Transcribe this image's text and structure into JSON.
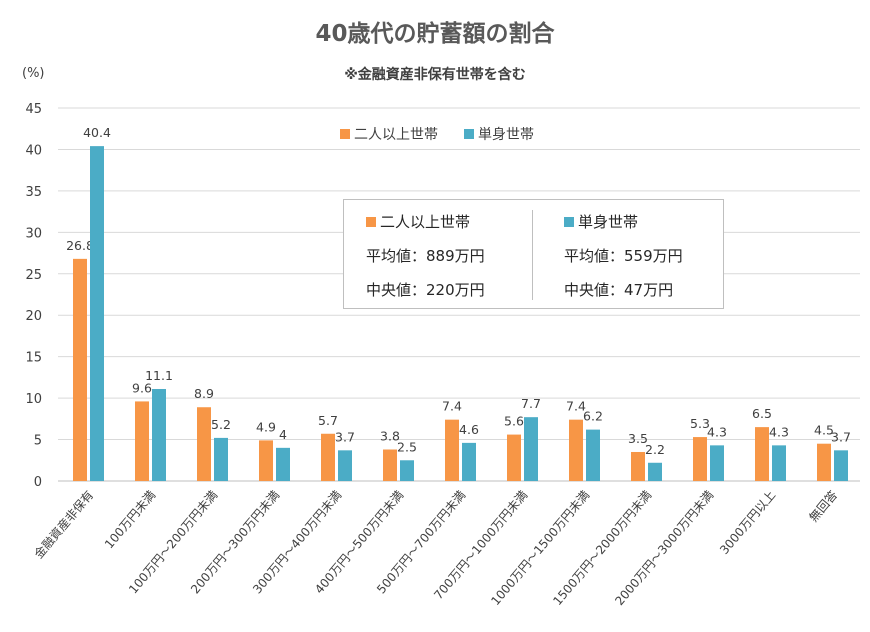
{
  "chart_data": {
    "type": "bar",
    "title": "40歳代の貯蓄額の割合",
    "subtitle": "※金融資産非保有世帯を含む",
    "ylabel": "(%)",
    "ylim": [
      0,
      45
    ],
    "yticks": [
      0,
      5,
      10,
      15,
      20,
      25,
      30,
      35,
      40,
      45
    ],
    "grid": true,
    "legend_position": "top",
    "categories": [
      "金融資産非保有",
      "100万円未満",
      "100万円～200万円未満",
      "200万円～300万円未満",
      "300万円～400万円未満",
      "400万円～500万円未満",
      "500万円～700万円未満",
      "700万円～1000万円未満",
      "1000万円～1500万円未満",
      "1500万円～2000万円未満",
      "2000万円～3000万円未満",
      "3000万円以上",
      "無回答"
    ],
    "series": [
      {
        "name": "二人以上世帯",
        "color": "#f79646",
        "values": [
          26.8,
          9.6,
          8.9,
          4.9,
          5.7,
          3.8,
          7.4,
          5.6,
          7.4,
          3.5,
          5.3,
          6.5,
          4.5
        ]
      },
      {
        "name": "単身世帯",
        "color": "#4bacc6",
        "values": [
          40.4,
          11.1,
          5.2,
          4,
          3.7,
          2.5,
          4.6,
          7.7,
          6.2,
          2.2,
          4.3,
          4.3,
          3.7
        ]
      }
    ],
    "annotation": {
      "left": {
        "name": "二人以上世帯",
        "mean": "平均値：889万円",
        "median": "中央値：220万円"
      },
      "right": {
        "name": "単身世帯",
        "mean": "平均値：559万円",
        "median": "中央値：47万円"
      }
    }
  }
}
